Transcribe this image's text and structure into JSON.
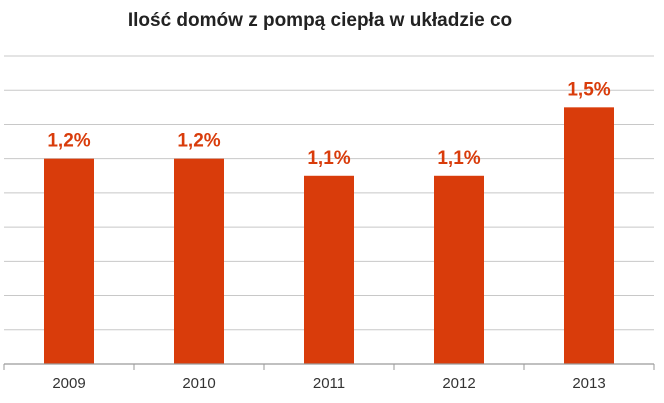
{
  "chart_data": {
    "type": "bar",
    "title": "Ilość domów z pompą ciepła w układzie co",
    "categories": [
      "2009",
      "2010",
      "2011",
      "2012",
      "2013"
    ],
    "values": [
      1.2,
      1.2,
      1.1,
      1.1,
      1.5
    ],
    "data_labels": [
      "1,2%",
      "1,2%",
      "1,1%",
      "1,1%",
      "1,5%"
    ],
    "xlabel": "",
    "ylabel": "",
    "ylim": [
      0,
      1.8
    ],
    "grid": true,
    "legend": "none",
    "colors": {
      "bar": "#D93C0B",
      "label": "#D93C0B",
      "grid": "#c8c8c8",
      "axis": "#9a9a9a"
    }
  }
}
